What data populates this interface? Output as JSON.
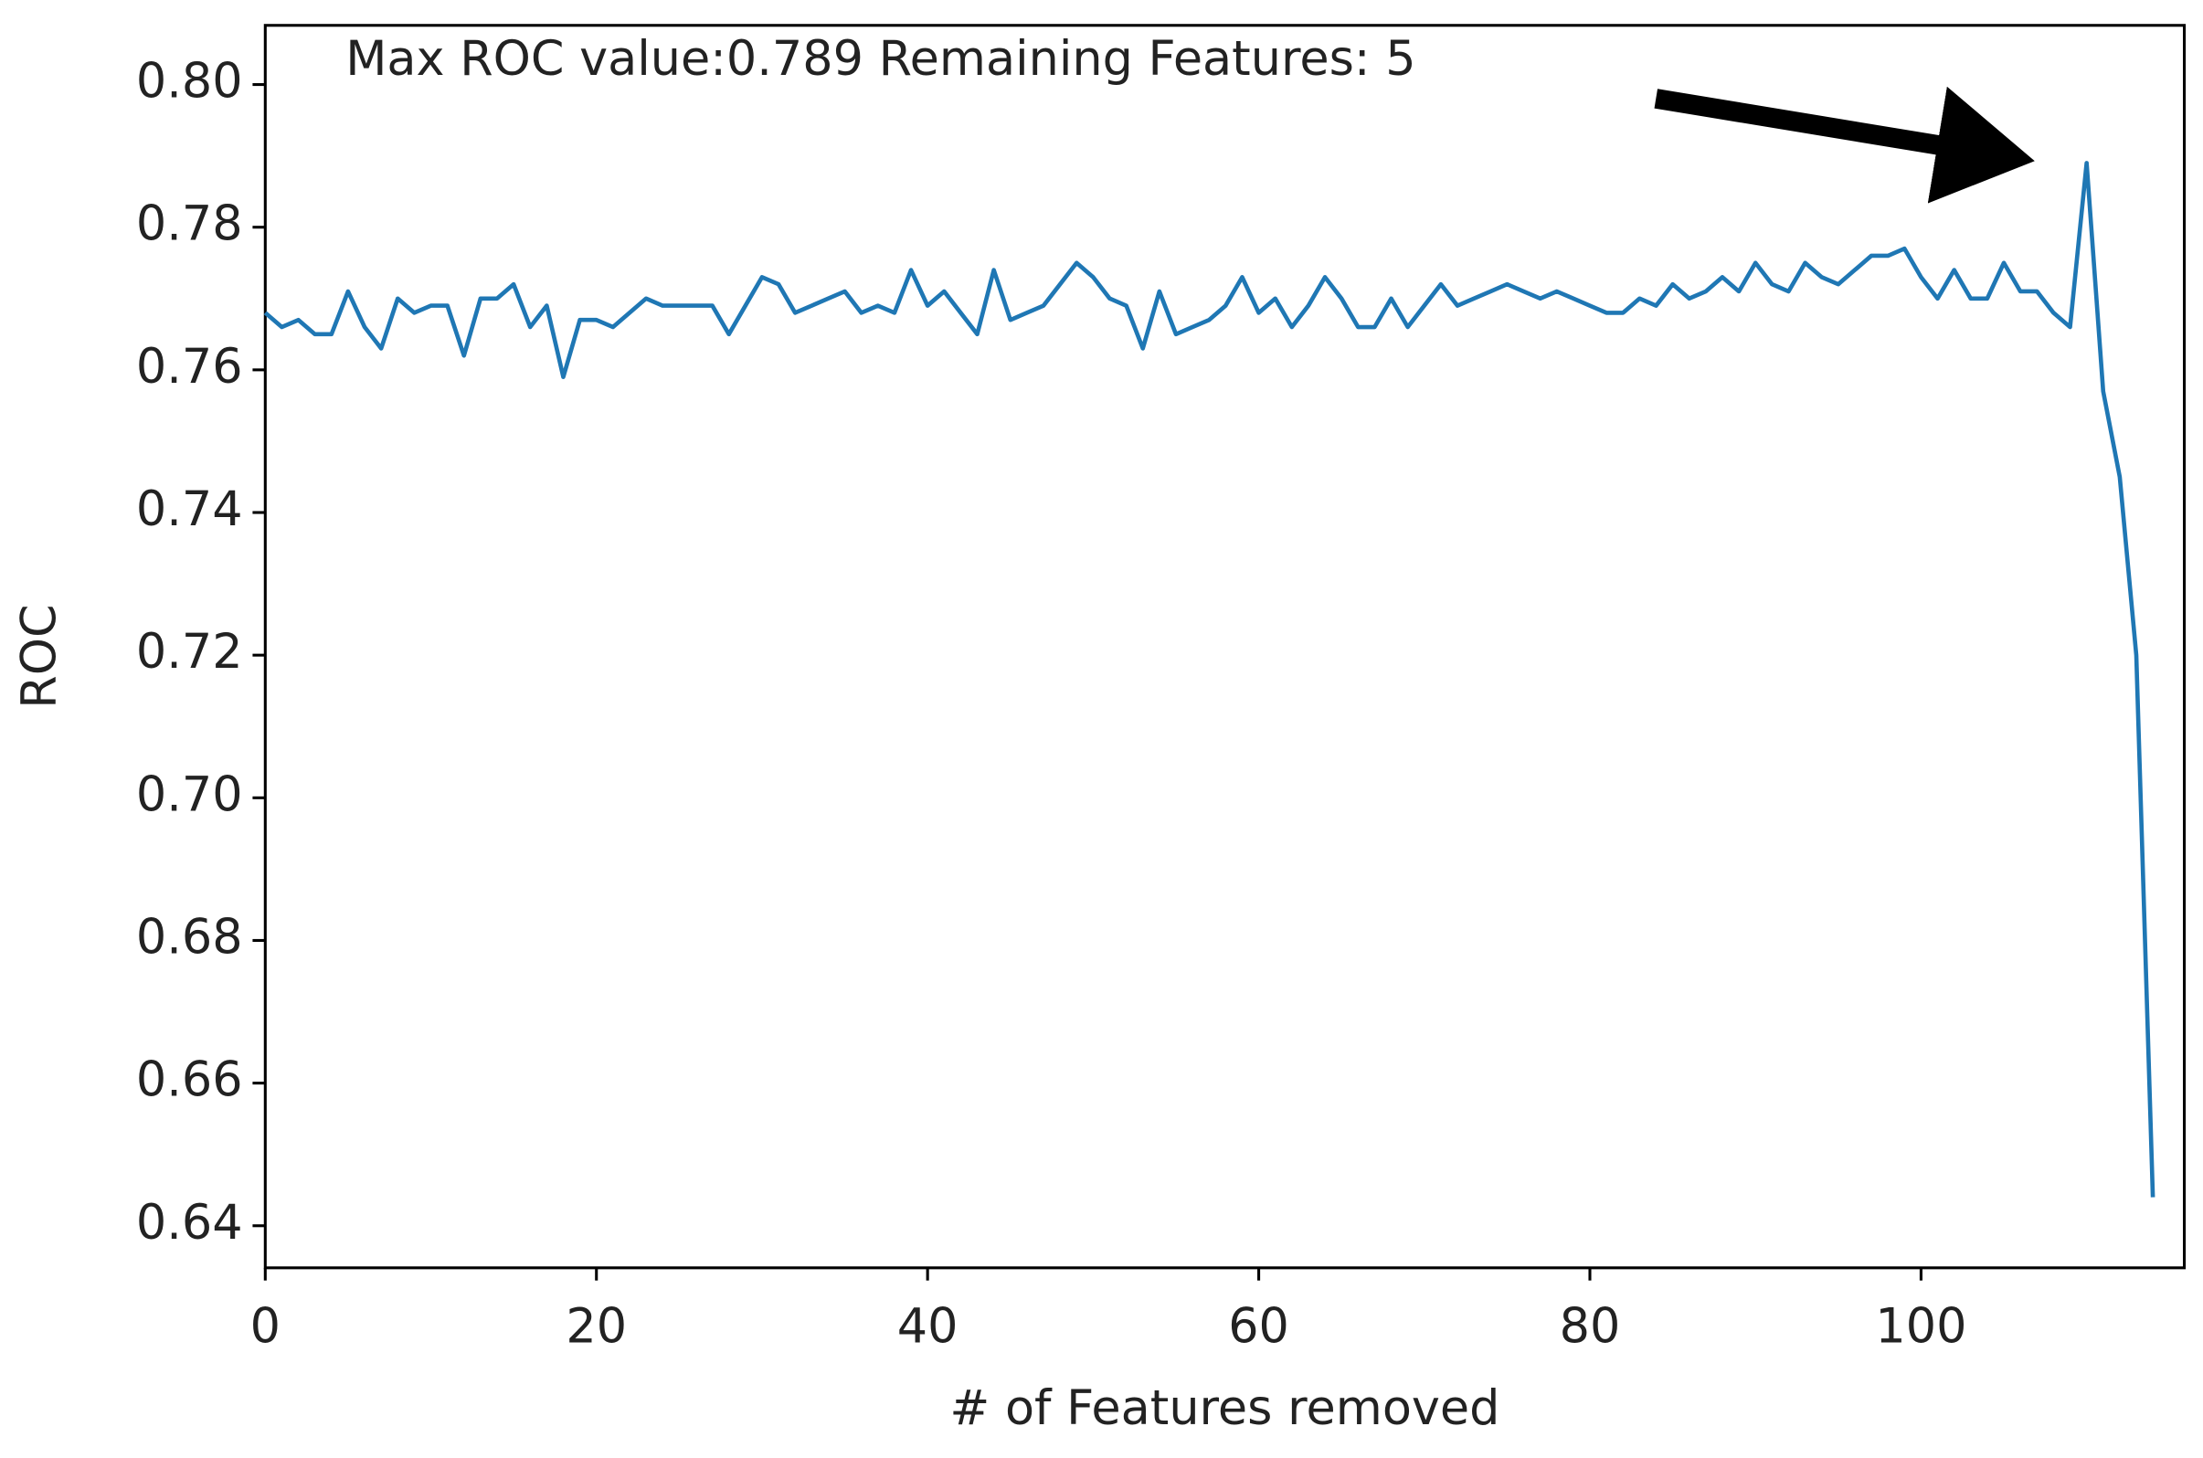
{
  "chart_data": {
    "type": "line",
    "annotation": "Max ROC value:0.789 Remaining Features: 5",
    "x_label": "# of Features removed",
    "y_label": "ROC",
    "x": [
      0,
      1,
      2,
      3,
      4,
      5,
      6,
      7,
      8,
      9,
      10,
      11,
      12,
      13,
      14,
      15,
      16,
      17,
      18,
      19,
      20,
      21,
      22,
      23,
      24,
      25,
      26,
      27,
      28,
      29,
      30,
      31,
      32,
      33,
      34,
      35,
      36,
      37,
      38,
      39,
      40,
      41,
      42,
      43,
      44,
      45,
      46,
      47,
      48,
      49,
      50,
      51,
      52,
      53,
      54,
      55,
      56,
      57,
      58,
      59,
      60,
      61,
      62,
      63,
      64,
      65,
      66,
      67,
      68,
      69,
      70,
      71,
      72,
      73,
      74,
      75,
      76,
      77,
      78,
      79,
      80,
      81,
      82,
      83,
      84,
      85,
      86,
      87,
      88,
      89,
      90,
      91,
      92,
      93,
      94,
      95,
      96,
      97,
      98,
      99,
      100,
      101,
      102,
      103,
      104,
      105,
      106,
      107,
      108,
      109,
      110,
      111,
      112,
      113,
      114
    ],
    "series": [
      {
        "color": "#1f77b4",
        "values": [
          0.768,
          0.766,
          0.767,
          0.765,
          0.765,
          0.771,
          0.766,
          0.763,
          0.77,
          0.768,
          0.769,
          0.769,
          0.762,
          0.77,
          0.77,
          0.772,
          0.766,
          0.769,
          0.759,
          0.767,
          0.767,
          0.766,
          0.768,
          0.77,
          0.769,
          0.769,
          0.769,
          0.769,
          0.765,
          0.769,
          0.773,
          0.772,
          0.768,
          0.769,
          0.77,
          0.771,
          0.768,
          0.769,
          0.768,
          0.774,
          0.769,
          0.771,
          0.768,
          0.765,
          0.774,
          0.767,
          0.768,
          0.769,
          0.772,
          0.775,
          0.773,
          0.77,
          0.769,
          0.763,
          0.771,
          0.765,
          0.766,
          0.767,
          0.769,
          0.773,
          0.768,
          0.77,
          0.766,
          0.769,
          0.773,
          0.77,
          0.766,
          0.766,
          0.77,
          0.766,
          0.769,
          0.772,
          0.769,
          0.77,
          0.771,
          0.772,
          0.771,
          0.77,
          0.771,
          0.77,
          0.769,
          0.768,
          0.768,
          0.77,
          0.769,
          0.772,
          0.77,
          0.771,
          0.773,
          0.771,
          0.775,
          0.772,
          0.771,
          0.775,
          0.773,
          0.772,
          0.774,
          0.776,
          0.776,
          0.777,
          0.773,
          0.77,
          0.774,
          0.77,
          0.77,
          0.775,
          0.771,
          0.771,
          0.768,
          0.766,
          0.789,
          0.757,
          0.745,
          0.72,
          0.644
        ]
      }
    ],
    "xlim": [
      0,
      115.9
    ],
    "xticks": [
      0,
      20,
      40,
      60,
      80,
      100
    ],
    "ylim": [
      0.6341,
      0.8083
    ],
    "yticks": [
      0.64,
      0.66,
      0.68,
      {
        "value": 0.7,
        "label": "0.70"
      },
      0.72,
      0.74,
      0.76,
      0.78,
      {
        "value": 0.8,
        "label": "0.80"
      }
    ]
  }
}
